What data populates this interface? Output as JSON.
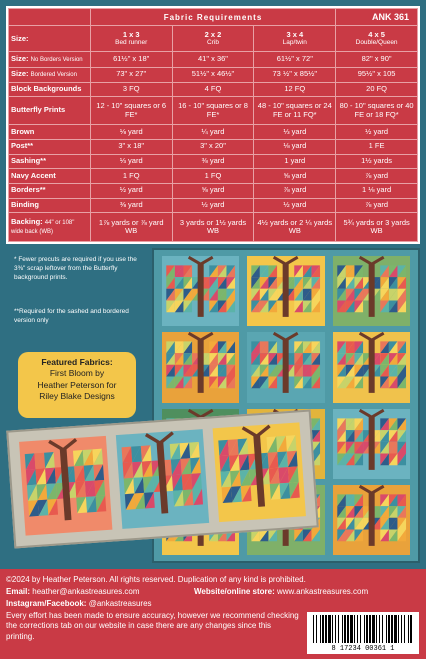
{
  "requirements": {
    "title": "Fabric Requirements",
    "code": "ANK 361",
    "sizes": [
      {
        "dims": "1 x 3",
        "name": "Bed runner"
      },
      {
        "dims": "2 x 2",
        "name": "Crib"
      },
      {
        "dims": "3 x 4",
        "name": "Lap/twin"
      },
      {
        "dims": "4 x 5",
        "name": "Double/Queen"
      }
    ],
    "rows": [
      {
        "label": "Size:",
        "sub": "",
        "values": [
          "",
          "",
          "",
          ""
        ]
      },
      {
        "label": "Size:",
        "sub": "No Borders Version",
        "values": [
          "61½\" x 18\"",
          "41\" x 36\"",
          "61½\" x 72\"",
          "82\" x 90\""
        ]
      },
      {
        "label": "Size:",
        "sub": "Bordered Version",
        "values": [
          "73\" x 27\"",
          "51½\" x 46½\"",
          "73 ½\" x 85½\"",
          "95½\" x 105"
        ]
      },
      {
        "label": "Block Backgrounds",
        "sub": "",
        "values": [
          "3 FQ",
          "4 FQ",
          "12 FQ",
          "20 FQ"
        ]
      },
      {
        "label": "Butterfly Prints",
        "sub": "",
        "values": [
          "12 - 10\" squares or 6 FE*",
          "16 - 10\" squares or 8 FE*",
          "48 - 10\" squares or 24 FE or 11 FQ*",
          "80 - 10\" squares or 40 FE or 18 FQ*"
        ]
      },
      {
        "label": "Brown",
        "sub": "",
        "values": [
          "⅛ yard",
          "¼ yard",
          "⅓ yard",
          "½ yard"
        ]
      },
      {
        "label": "Post**",
        "sub": "",
        "values": [
          "3\" x 18\"",
          "3\" x 20\"",
          "⅛ yard",
          "1 FE"
        ]
      },
      {
        "label": "Sashing**",
        "sub": "",
        "values": [
          "⅓ yard",
          "⅜ yard",
          "1 yard",
          "1½ yards"
        ]
      },
      {
        "label": "Navy Accent",
        "sub": "",
        "values": [
          "1 FQ",
          "1 FQ",
          "⅝ yard",
          "⅞ yard"
        ]
      },
      {
        "label": "Borders**",
        "sub": "",
        "values": [
          "½ yard",
          "⅝ yard",
          "⅞ yard",
          "1 ⅛ yard"
        ]
      },
      {
        "label": "Binding",
        "sub": "",
        "values": [
          "⅜ yard",
          "½ yard",
          "½ yard",
          "⅞ yard"
        ]
      },
      {
        "label": "Backing:",
        "sub": "44\" or 108\" wide back (WB)",
        "values": [
          "1⅞ yards or ⅞ yard WB",
          "3 yards or 1½ yards WB",
          "4½ yards or 2 ¼ yards WB",
          "5¾ yards or 3 yards WB"
        ]
      }
    ]
  },
  "notes": {
    "note1": "* Fewer precuts are required if you use the 3⅜\" scrap leftover from the Butterfly background prints.",
    "note2": "**Required for the sashed and bordered version only"
  },
  "featured": {
    "heading": "Featured Fabrics:",
    "line1": "First Bloom by",
    "line2": "Heather Peterson for",
    "line3": "Riley Blake Designs"
  },
  "footer": {
    "copyright": "©2024 by Heather Peterson.  All rights reserved.  Duplication of any kind is prohibited.",
    "email_label": "Email:",
    "email": "heather@ankastreasures.com",
    "website_label": "Website/online store:",
    "website": "www.ankastreasures.com",
    "social_label": "Instagram/Facebook:",
    "social": "@ankastreasures",
    "disclaimer": "Every effort has been made to ensure accuracy, however we recommend checking the corrections tab on our website in case there are any changes since this printing.",
    "barcode_digits": "8   17234   00361   1"
  },
  "colors": {
    "accent_red": "#c93a45",
    "teal": "#2f6f82",
    "featured_yellow": "#f3c64a"
  }
}
